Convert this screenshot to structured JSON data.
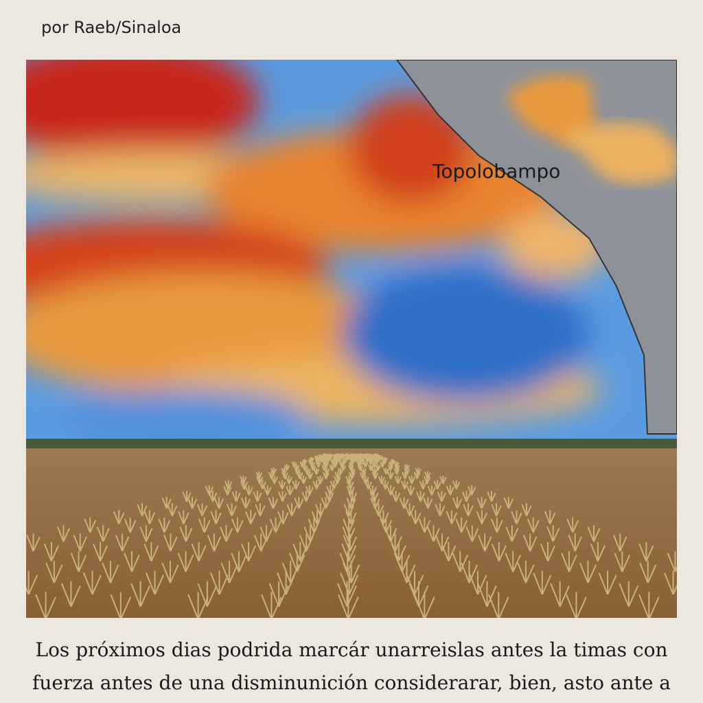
{
  "byline": "por Raeb/Sinaloa",
  "image": {
    "label": "Topolobampo"
  },
  "caption": {
    "lines": [
      "Los próximos dias podrida marcár unarreislas antes la timas con",
      "fuerza antes de una disminunición considerarar, bien, asto ante a"
    ]
  }
}
